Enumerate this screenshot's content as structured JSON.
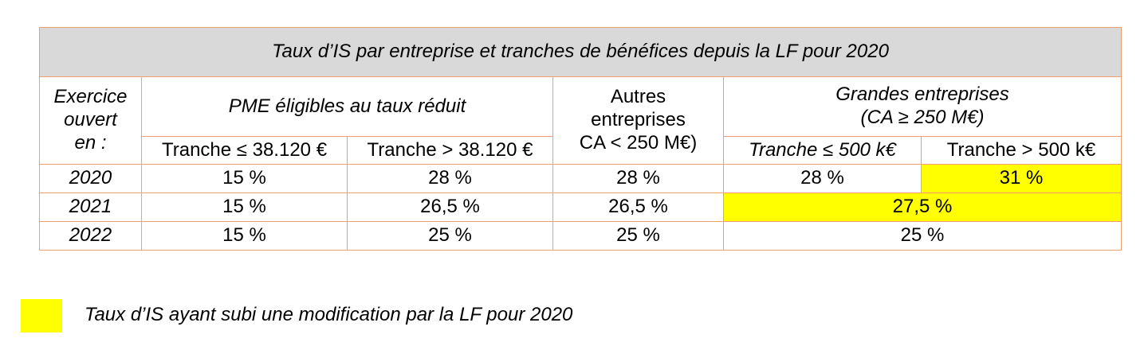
{
  "table": {
    "title": "Taux d’IS par entreprise et tranches de bénéfices depuis la LF pour 2020",
    "header": {
      "exercice": [
        "Exercice",
        "ouvert",
        "en :"
      ],
      "pme": "PME éligibles au taux réduit",
      "pme_tranche_low": "Tranche ≤ 38.120 €",
      "pme_tranche_high": "Tranche > 38.120 €",
      "autres": [
        "Autres",
        "entreprises",
        "CA < 250 M€)"
      ],
      "grandes": [
        "Grandes entreprises",
        "(CA ≥ 250 M€)"
      ],
      "ge_tranche_low": "Tranche ≤ 500 k€",
      "ge_tranche_high": "Tranche > 500 k€"
    },
    "rows": [
      {
        "year": "2020",
        "pme_low": "15 %",
        "pme_high": "28 %",
        "autres": "28 %",
        "ge_low": "28 %",
        "ge_high": "31 %"
      },
      {
        "year": "2021",
        "pme_low": "15 %",
        "pme_high": "26,5 %",
        "autres": "26,5 %",
        "ge_merged": "27,5 %"
      },
      {
        "year": "2022",
        "pme_low": "15 %",
        "pme_high": "25 %",
        "autres": "25 %",
        "ge_merged": "25 %"
      }
    ]
  },
  "legend": {
    "color": "#ffff00",
    "text": "Taux d’IS ayant subi une modification par la LF pour 2020"
  },
  "colors": {
    "border": "#f0a070",
    "title_background": "#d9d9d9",
    "highlight": "#ffff00"
  }
}
